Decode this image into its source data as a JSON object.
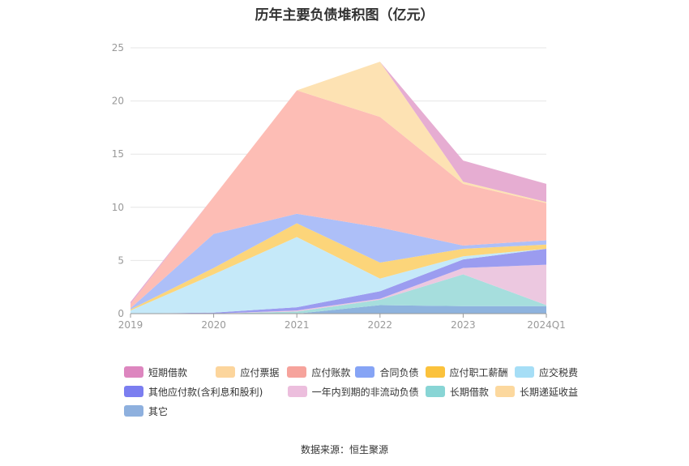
{
  "title": "历年主要负债堆积图（亿元）",
  "source": "数据来源：恒生聚源",
  "chart_data": {
    "type": "area",
    "stacked": true,
    "categories": [
      "2019",
      "2020",
      "2021",
      "2022",
      "2023",
      "2024Q1"
    ],
    "ylim": [
      0,
      25
    ],
    "yticks": [
      0,
      5,
      10,
      15,
      20,
      25
    ],
    "grid": true,
    "legend_position": "bottom",
    "series": [
      {
        "name": "其它",
        "color": "#8eb3de",
        "values": [
          0,
          0,
          0,
          0.8,
          0.7,
          0.7
        ]
      },
      {
        "name": "长期递延收益",
        "color": "#f5d9a3",
        "values": [
          0,
          0,
          0,
          0,
          0,
          0
        ]
      },
      {
        "name": "长期借款",
        "color": "#a6dedd",
        "values": [
          0,
          0,
          0.2,
          0.5,
          3.0,
          0.1
        ]
      },
      {
        "name": "一年内到期的非流动负债",
        "color": "#ecc8e0",
        "values": [
          0,
          0,
          0.1,
          0.1,
          0.6,
          3.8
        ]
      },
      {
        "name": "其他应付款(含利息和股利)",
        "color": "#9b9cf0",
        "values": [
          0,
          0.1,
          0.3,
          0.7,
          0.8,
          1.5
        ]
      },
      {
        "name": "应交税费",
        "color": "#c5e9f9",
        "values": [
          0.3,
          3.6,
          6.6,
          1.2,
          0.3,
          0
        ]
      },
      {
        "name": "应付职工薪酬",
        "color": "#fcd57a",
        "values": [
          0.1,
          0.6,
          1.3,
          1.5,
          0.7,
          0.4
        ]
      },
      {
        "name": "合同负债",
        "color": "#adbff8",
        "values": [
          0.1,
          3.2,
          0.9,
          3.3,
          0.3,
          0.4
        ]
      },
      {
        "name": "应付账款",
        "color": "#fdbdb5",
        "values": [
          0.4,
          3.5,
          11.6,
          10.4,
          5.8,
          3.5
        ]
      },
      {
        "name": "应付票据",
        "color": "#fde2b3",
        "values": [
          0,
          0,
          0,
          5.2,
          0.2,
          0.1
        ]
      },
      {
        "name": "短期借款",
        "color": "#e6add2",
        "values": [
          0.2,
          0,
          0,
          0,
          2.0,
          1.7
        ]
      }
    ]
  },
  "legend": [
    {
      "label": "短期借款",
      "color": "#dd86bf"
    },
    {
      "label": "应付票据",
      "color": "#fcd59c"
    },
    {
      "label": "应付账款",
      "color": "#f6a39c"
    },
    {
      "label": "合同负债",
      "color": "#86a4f5"
    },
    {
      "label": "应付职工薪酬",
      "color": "#fbc23c"
    },
    {
      "label": "应交税费",
      "color": "#a6def6"
    },
    {
      "label": "其他应付款(含利息和股利)",
      "color": "#7b7ef0"
    },
    {
      "label": "一年内到期的非流动负债",
      "color": "#ecbedd"
    },
    {
      "label": "长期借款",
      "color": "#88d5d5"
    },
    {
      "label": "长期递延收益",
      "color": "#fcd89e"
    },
    {
      "label": "其它",
      "color": "#8eb0de"
    }
  ]
}
